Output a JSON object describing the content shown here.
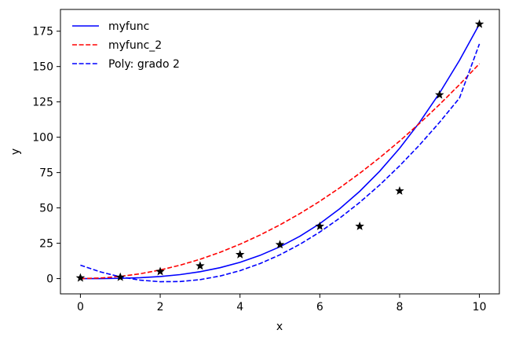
{
  "chart_data": {
    "type": "line",
    "xlabel": "x",
    "ylabel": "y",
    "xlim": [
      -0.5,
      10.5
    ],
    "ylim": [
      -10.8,
      190.4
    ],
    "xticks": [
      0,
      2,
      4,
      6,
      8,
      10
    ],
    "yticks": [
      0,
      25,
      50,
      75,
      100,
      125,
      150,
      175
    ],
    "grid": false,
    "legend_position": "top-left",
    "points": {
      "marker": "star",
      "color": "#000000",
      "x": [
        0,
        1,
        2,
        3,
        4,
        5,
        6,
        7,
        8,
        9,
        10
      ],
      "y": [
        0.5,
        1,
        5,
        9,
        17,
        24,
        37,
        37,
        62,
        130,
        180
      ]
    },
    "series": [
      {
        "name": "myfunc",
        "color": "#0000ff",
        "style": "solid",
        "x": [
          0,
          0.5,
          1,
          1.5,
          2,
          2.5,
          3,
          3.5,
          4,
          4.5,
          5,
          5.5,
          6,
          6.5,
          7,
          7.5,
          8,
          8.5,
          9,
          9.5,
          10
        ],
        "y": [
          0,
          0.02,
          0.18,
          0.61,
          1.44,
          2.81,
          4.86,
          7.72,
          11.52,
          16.4,
          22.5,
          29.95,
          38.88,
          49.43,
          61.74,
          75.94,
          92.16,
          110.54,
          131.22,
          154.33,
          180
        ]
      },
      {
        "name": "myfunc_2",
        "color": "#ff0000",
        "style": "dashed",
        "x": [
          0,
          0.5,
          1,
          1.5,
          2,
          2.5,
          3,
          3.5,
          4,
          4.5,
          5,
          5.5,
          6,
          6.5,
          7,
          7.5,
          8,
          8.5,
          9,
          9.5,
          10
        ],
        "y": [
          0,
          0.38,
          1.52,
          3.42,
          6.08,
          9.5,
          13.68,
          18.62,
          24.32,
          30.78,
          38,
          45.98,
          54.72,
          64.22,
          74.48,
          85.5,
          97.28,
          109.82,
          123.12,
          137.18,
          152
        ]
      },
      {
        "name": "Poly: grado 2",
        "color": "#0000ff",
        "style": "dashed",
        "x": [
          0,
          0.5,
          1,
          1.5,
          2,
          2.5,
          3,
          3.5,
          4,
          4.5,
          5,
          5.5,
          6,
          6.5,
          7,
          7.5,
          8,
          8.5,
          9,
          9.5,
          10
        ],
        "y": [
          9.5,
          4.75,
          1.22,
          -1.1,
          -2.2,
          -2.08,
          -0.74,
          1.82,
          5.6,
          10.6,
          16.82,
          24.26,
          32.92,
          42.8,
          53.9,
          66.22,
          79.76,
          94.52,
          110.5,
          127.7,
          166
        ]
      }
    ]
  }
}
